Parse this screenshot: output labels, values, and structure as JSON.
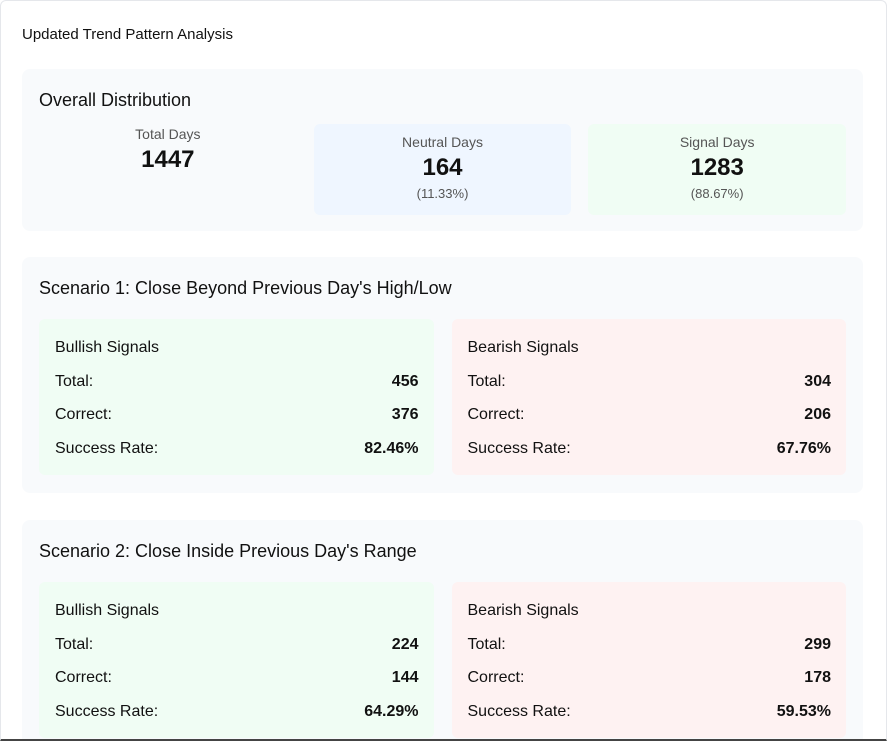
{
  "header": {
    "title": "Updated Trend Pattern Analysis"
  },
  "overall": {
    "title": "Overall Distribution",
    "stats": [
      {
        "label": "Total Days",
        "value": "1447"
      },
      {
        "label": "Neutral Days",
        "value": "164",
        "percent": "(11.33%)"
      },
      {
        "label": "Signal Days",
        "value": "1283",
        "percent": "(88.67%)"
      }
    ]
  },
  "scenarios": [
    {
      "title": "Scenario 1: Close Beyond Previous Day's High/Low",
      "panels": [
        {
          "title": "Bullish Signals",
          "rows": [
            [
              "Total:",
              "456"
            ],
            [
              "Correct:",
              "376"
            ],
            [
              "Success Rate:",
              "82.46%"
            ]
          ]
        },
        {
          "title": "Bearish Signals",
          "rows": [
            [
              "Total:",
              "304"
            ],
            [
              "Correct:",
              "206"
            ],
            [
              "Success Rate:",
              "67.76%"
            ]
          ]
        }
      ]
    },
    {
      "title": "Scenario 2: Close Inside Previous Day's Range",
      "panels": [
        {
          "title": "Bullish Signals",
          "rows": [
            [
              "Total:",
              "224"
            ],
            [
              "Correct:",
              "144"
            ],
            [
              "Success Rate:",
              "64.29%"
            ]
          ]
        },
        {
          "title": "Bearish Signals",
          "rows": [
            [
              "Total:",
              "299"
            ],
            [
              "Correct:",
              "178"
            ],
            [
              "Success Rate:",
              "59.53%"
            ]
          ]
        }
      ]
    }
  ]
}
